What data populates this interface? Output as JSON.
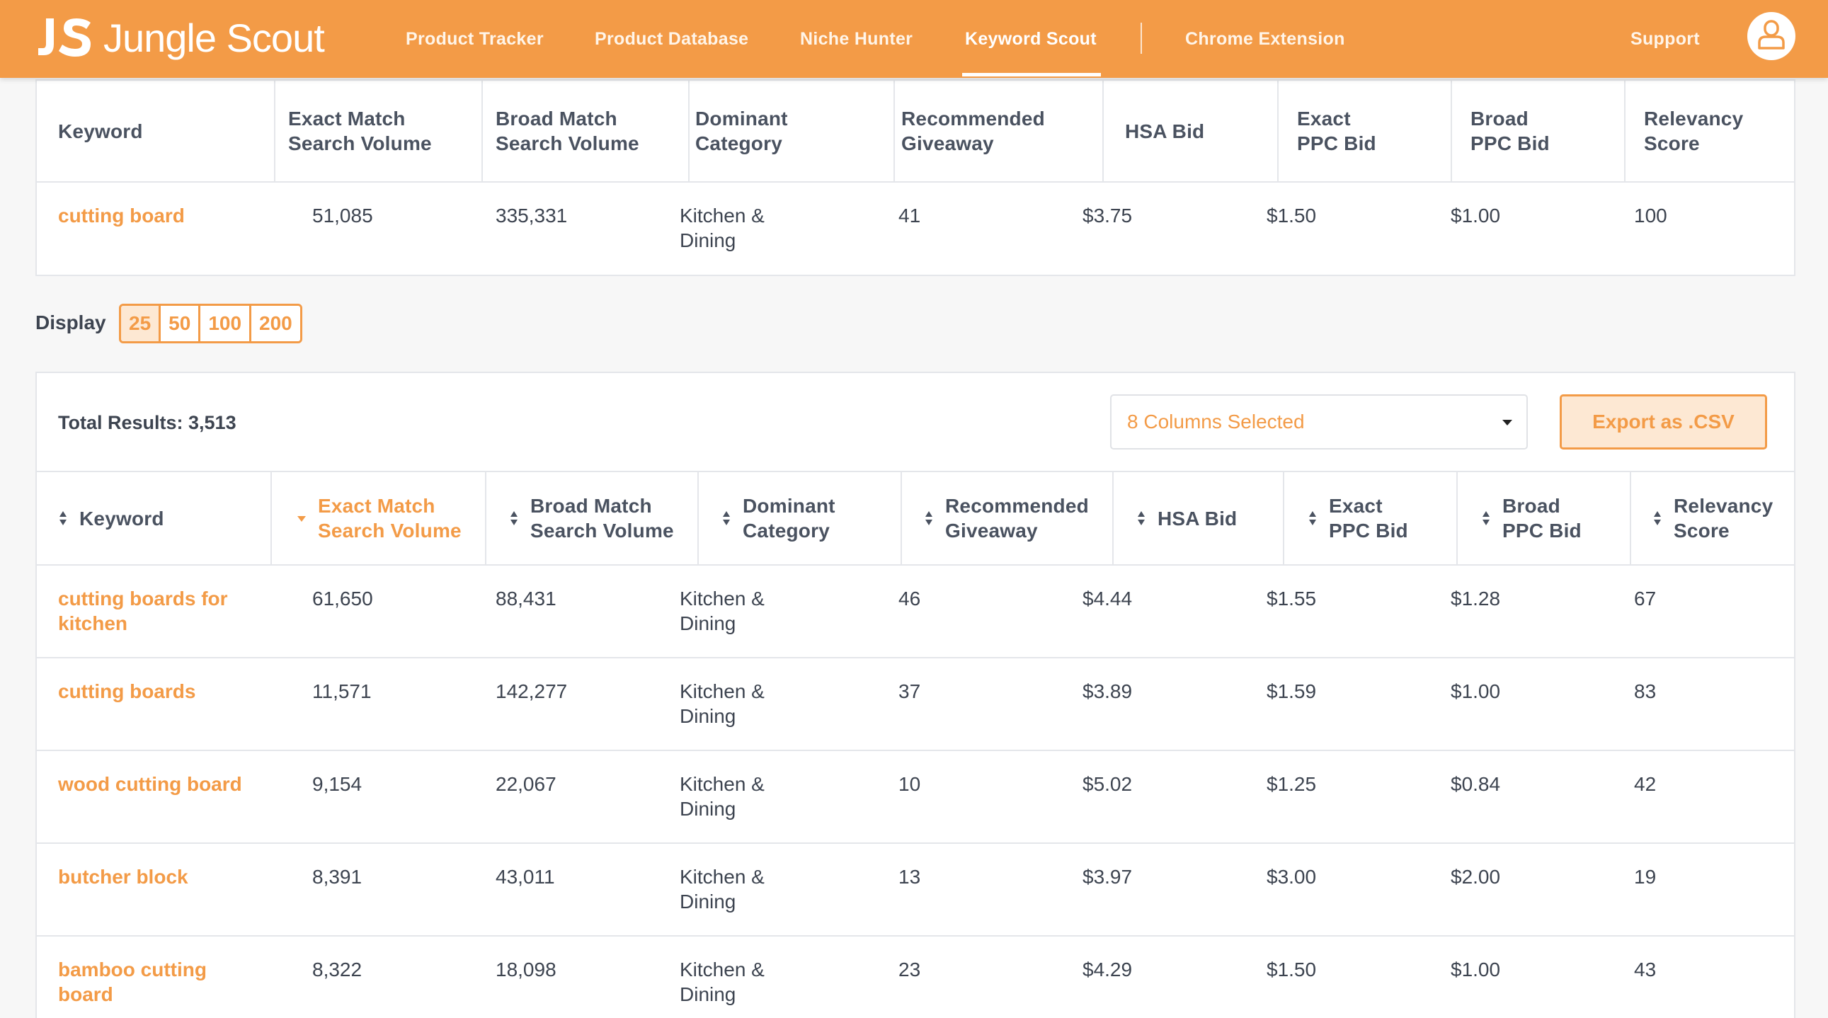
{
  "brand": {
    "name": "Jungle Scout"
  },
  "nav": {
    "items": [
      {
        "label": "Product Tracker"
      },
      {
        "label": "Product Database"
      },
      {
        "label": "Niche Hunter"
      },
      {
        "label": "Keyword Scout"
      },
      {
        "label": "Chrome Extension"
      }
    ],
    "support": "Support",
    "active": "Keyword Scout"
  },
  "columns": [
    "Keyword",
    "Exact Match\nSearch Volume",
    "Broad Match\nSearch Volume",
    "Dominant\nCategory",
    "Recommended\nGiveaway",
    "HSA Bid",
    "Exact\nPPC Bid",
    "Broad\nPPC Bid",
    "Relevancy\nScore"
  ],
  "searched": {
    "keyword": "cutting board",
    "exact_volume": "51,085",
    "broad_volume": "335,331",
    "category": "Kitchen &\nDining",
    "giveaway": "41",
    "hsa_bid": "$3.75",
    "exact_ppc": "$1.50",
    "broad_ppc": "$1.00",
    "relevancy": "100"
  },
  "display": {
    "label": "Display",
    "options": [
      "25",
      "50",
      "100",
      "200"
    ],
    "selected": "25"
  },
  "results": {
    "total_label": "Total Results: 3,513",
    "columns_selected": "8 Columns Selected",
    "export_label": "Export as .CSV",
    "sorted_column": "Exact Match\nSearch Volume",
    "rows": [
      {
        "keyword": "cutting boards for\nkitchen",
        "exact_volume": "61,650",
        "broad_volume": "88,431",
        "category": "Kitchen &\nDining",
        "giveaway": "46",
        "hsa_bid": "$4.44",
        "exact_ppc": "$1.55",
        "broad_ppc": "$1.28",
        "relevancy": "67"
      },
      {
        "keyword": "cutting boards",
        "exact_volume": "11,571",
        "broad_volume": "142,277",
        "category": "Kitchen &\nDining",
        "giveaway": "37",
        "hsa_bid": "$3.89",
        "exact_ppc": "$1.59",
        "broad_ppc": "$1.00",
        "relevancy": "83"
      },
      {
        "keyword": "wood cutting board",
        "exact_volume": "9,154",
        "broad_volume": "22,067",
        "category": "Kitchen &\nDining",
        "giveaway": "10",
        "hsa_bid": "$5.02",
        "exact_ppc": "$1.25",
        "broad_ppc": "$0.84",
        "relevancy": "42"
      },
      {
        "keyword": "butcher block",
        "exact_volume": "8,391",
        "broad_volume": "43,011",
        "category": "Kitchen &\nDining",
        "giveaway": "13",
        "hsa_bid": "$3.97",
        "exact_ppc": "$3.00",
        "broad_ppc": "$2.00",
        "relevancy": "19"
      },
      {
        "keyword": "bamboo cutting\nboard",
        "exact_volume": "8,322",
        "broad_volume": "18,098",
        "category": "Kitchen &\nDining",
        "giveaway": "23",
        "hsa_bid": "$4.29",
        "exact_ppc": "$1.50",
        "broad_ppc": "$1.00",
        "relevancy": "43"
      }
    ]
  },
  "colors": {
    "accent": "#f39b47",
    "accent_light": "#fde8d3",
    "text": "#3d4450",
    "border": "#e4e6ea"
  },
  "icons": {
    "sort": "sort-arrows-icon",
    "sort_active": "sort-desc-icon",
    "user": "user-icon",
    "caret": "caret-down-icon"
  }
}
